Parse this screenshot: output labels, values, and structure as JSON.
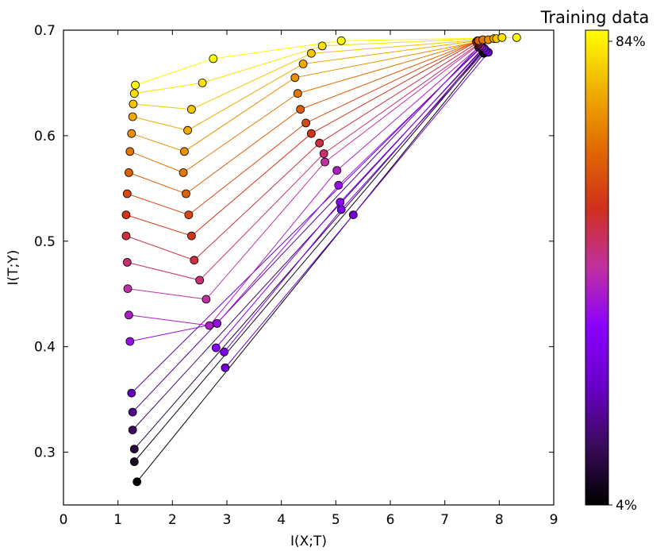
{
  "chart_data": {
    "type": "line",
    "xlabel": "I(X;T)",
    "ylabel": "I(T;Y)",
    "xlim": [
      0,
      9
    ],
    "ylim": [
      0.25,
      0.7
    ],
    "x_ticks": [
      "0",
      "1",
      "2",
      "3",
      "4",
      "5",
      "6",
      "7",
      "8",
      "9"
    ],
    "y_ticks": [
      "0.3",
      "0.4",
      "0.5",
      "0.6",
      "0.7"
    ],
    "grid": false,
    "colorbar": {
      "title": "Training data",
      "max_label": "84%",
      "min_label": "4%",
      "colormap": "gnuplot",
      "stops": [
        "#000000",
        "#3a0a5a",
        "#6a00c8",
        "#8a00ff",
        "#c030a0",
        "#d0301c",
        "#e06a00",
        "#f0b000",
        "#ffff00"
      ]
    },
    "marker_edge_color": "#000000",
    "series": [
      {
        "points": [
          [
            1.35,
            0.272
          ],
          [
            7.72,
            0.678
          ]
        ]
      },
      {
        "points": [
          [
            1.3,
            0.291
          ],
          [
            7.7,
            0.68
          ]
        ]
      },
      {
        "points": [
          [
            1.3,
            0.303
          ],
          [
            7.72,
            0.682
          ]
        ]
      },
      {
        "points": [
          [
            1.27,
            0.321
          ],
          [
            7.7,
            0.683
          ]
        ]
      },
      {
        "points": [
          [
            1.27,
            0.338
          ],
          [
            7.62,
            0.684
          ]
        ]
      },
      {
        "points": [
          [
            1.25,
            0.356
          ],
          [
            7.68,
            0.685
          ]
        ]
      },
      {
        "points": [
          [
            2.97,
            0.38
          ],
          [
            5.32,
            0.525
          ],
          [
            7.8,
            0.679
          ]
        ]
      },
      {
        "points": [
          [
            2.95,
            0.395
          ],
          [
            5.1,
            0.53
          ],
          [
            7.75,
            0.681
          ]
        ]
      },
      {
        "points": [
          [
            2.8,
            0.399
          ],
          [
            5.08,
            0.537
          ],
          [
            7.72,
            0.683
          ]
        ]
      },
      {
        "points": [
          [
            1.22,
            0.405
          ],
          [
            2.82,
            0.422
          ],
          [
            5.05,
            0.553
          ],
          [
            7.68,
            0.684
          ]
        ]
      },
      {
        "points": [
          [
            1.2,
            0.43
          ],
          [
            2.68,
            0.42
          ],
          [
            5.02,
            0.567
          ],
          [
            7.65,
            0.685
          ]
        ]
      },
      {
        "points": [
          [
            1.18,
            0.455
          ],
          [
            2.62,
            0.445
          ],
          [
            4.8,
            0.575
          ],
          [
            7.62,
            0.686
          ]
        ]
      },
      {
        "points": [
          [
            1.17,
            0.48
          ],
          [
            2.5,
            0.463
          ],
          [
            4.78,
            0.583
          ],
          [
            7.62,
            0.687
          ]
        ]
      },
      {
        "points": [
          [
            1.15,
            0.505
          ],
          [
            2.4,
            0.482
          ],
          [
            4.7,
            0.593
          ],
          [
            7.6,
            0.688
          ]
        ]
      },
      {
        "points": [
          [
            1.15,
            0.525
          ],
          [
            2.35,
            0.505
          ],
          [
            4.55,
            0.602
          ],
          [
            7.58,
            0.689
          ]
        ]
      },
      {
        "points": [
          [
            1.17,
            0.545
          ],
          [
            2.3,
            0.525
          ],
          [
            4.45,
            0.612
          ],
          [
            7.6,
            0.69
          ]
        ]
      },
      {
        "points": [
          [
            1.2,
            0.565
          ],
          [
            2.25,
            0.545
          ],
          [
            4.35,
            0.625
          ],
          [
            7.62,
            0.69
          ]
        ]
      },
      {
        "points": [
          [
            1.22,
            0.585
          ],
          [
            2.2,
            0.565
          ],
          [
            4.3,
            0.64
          ],
          [
            7.7,
            0.691
          ]
        ]
      },
      {
        "points": [
          [
            1.25,
            0.602
          ],
          [
            2.22,
            0.585
          ],
          [
            4.25,
            0.655
          ],
          [
            7.8,
            0.691
          ]
        ]
      },
      {
        "points": [
          [
            1.27,
            0.618
          ],
          [
            2.28,
            0.605
          ],
          [
            4.4,
            0.668
          ],
          [
            7.9,
            0.692
          ]
        ]
      },
      {
        "points": [
          [
            1.28,
            0.63
          ],
          [
            2.35,
            0.625
          ],
          [
            4.55,
            0.678
          ],
          [
            7.95,
            0.692
          ]
        ]
      },
      {
        "points": [
          [
            1.3,
            0.64
          ],
          [
            2.55,
            0.65
          ],
          [
            4.75,
            0.685
          ],
          [
            8.05,
            0.693
          ]
        ]
      },
      {
        "points": [
          [
            1.32,
            0.648
          ],
          [
            2.75,
            0.673
          ],
          [
            5.1,
            0.69
          ],
          [
            8.32,
            0.693
          ]
        ]
      }
    ]
  }
}
